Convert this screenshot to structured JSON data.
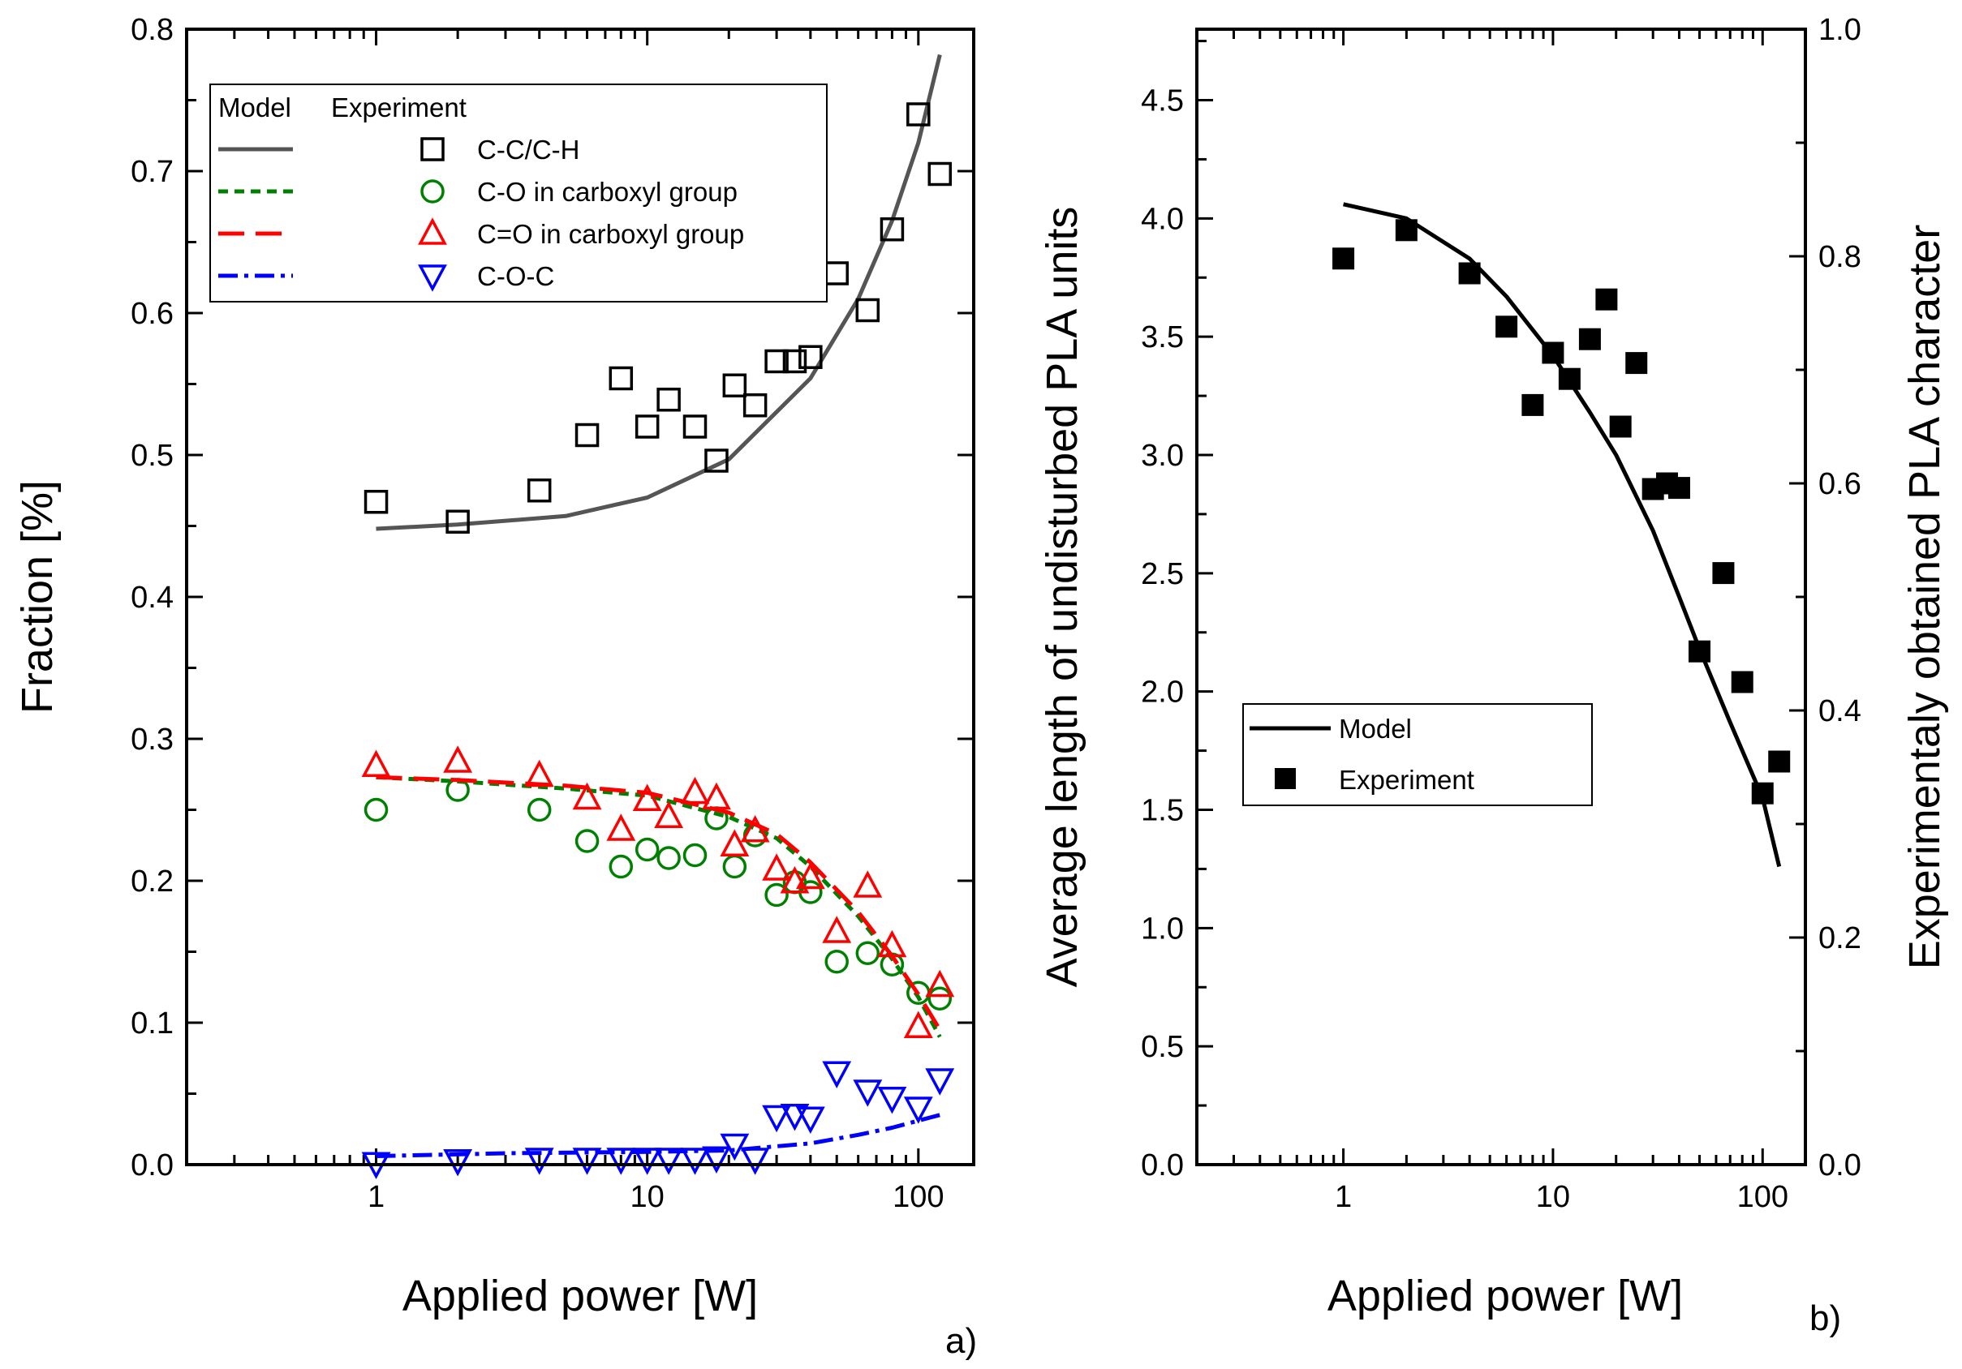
{
  "chart_data": [
    {
      "panel_label": "a)",
      "type": "scatter",
      "x_scale": "log",
      "xlabel": "Applied power [W]",
      "ylabel": "Fraction [%]",
      "xlim": [
        0.2,
        160
      ],
      "ylim": [
        0.0,
        0.8
      ],
      "x_ticks": [
        "1",
        "10",
        "100"
      ],
      "y_ticks": [
        "0.0",
        "0.1",
        "0.2",
        "0.3",
        "0.4",
        "0.5",
        "0.6",
        "0.7",
        "0.8"
      ],
      "legend": {
        "position": "top-left",
        "header_model": "Model",
        "header_experiment": "Experiment"
      },
      "series": [
        {
          "name": "C-C/C-H",
          "color": "#000000",
          "line_color": "#555555",
          "marker": "square-open",
          "line_style": "solid",
          "points": [
            [
              1,
              0.467
            ],
            [
              2,
              0.453
            ],
            [
              4,
              0.475
            ],
            [
              6,
              0.514
            ],
            [
              8,
              0.554
            ],
            [
              10,
              0.52
            ],
            [
              12,
              0.539
            ],
            [
              15,
              0.52
            ],
            [
              18,
              0.496
            ],
            [
              21,
              0.549
            ],
            [
              25,
              0.535
            ],
            [
              30,
              0.566
            ],
            [
              35,
              0.566
            ],
            [
              40,
              0.569
            ],
            [
              50,
              0.628
            ],
            [
              65,
              0.602
            ],
            [
              80,
              0.659
            ],
            [
              100,
              0.74
            ],
            [
              120,
              0.698
            ]
          ],
          "model": [
            [
              1,
              0.448
            ],
            [
              2,
              0.451
            ],
            [
              5,
              0.457
            ],
            [
              10,
              0.47
            ],
            [
              20,
              0.497
            ],
            [
              40,
              0.554
            ],
            [
              60,
              0.61
            ],
            [
              80,
              0.665
            ],
            [
              100,
              0.72
            ],
            [
              120,
              0.782
            ]
          ]
        },
        {
          "name": "C-O in carboxyl group",
          "color": "#008000",
          "line_color": "#008000",
          "marker": "circle-open",
          "line_style": "short-dash",
          "points": [
            [
              1,
              0.25
            ],
            [
              2,
              0.264
            ],
            [
              4,
              0.25
            ],
            [
              6,
              0.228
            ],
            [
              8,
              0.21
            ],
            [
              10,
              0.222
            ],
            [
              12,
              0.216
            ],
            [
              15,
              0.218
            ],
            [
              18,
              0.244
            ],
            [
              21,
              0.21
            ],
            [
              25,
              0.232
            ],
            [
              30,
              0.19
            ],
            [
              35,
              0.199
            ],
            [
              40,
              0.192
            ],
            [
              50,
              0.143
            ],
            [
              65,
              0.149
            ],
            [
              80,
              0.141
            ],
            [
              100,
              0.121
            ],
            [
              120,
              0.117
            ]
          ],
          "model": [
            [
              1,
              0.273
            ],
            [
              2,
              0.27
            ],
            [
              5,
              0.265
            ],
            [
              10,
              0.26
            ],
            [
              20,
              0.245
            ],
            [
              30,
              0.23
            ],
            [
              40,
              0.21
            ],
            [
              60,
              0.175
            ],
            [
              80,
              0.145
            ],
            [
              100,
              0.118
            ],
            [
              120,
              0.09
            ]
          ]
        },
        {
          "name": "C=O in carboxyl group",
          "color": "#ff0000",
          "line_color": "#ff0000",
          "marker": "triangle-up-open",
          "line_style": "long-dash",
          "points": [
            [
              1,
              0.281
            ],
            [
              2,
              0.284
            ],
            [
              4,
              0.274
            ],
            [
              6,
              0.258
            ],
            [
              8,
              0.236
            ],
            [
              10,
              0.257
            ],
            [
              12,
              0.245
            ],
            [
              15,
              0.262
            ],
            [
              18,
              0.258
            ],
            [
              21,
              0.225
            ],
            [
              25,
              0.235
            ],
            [
              30,
              0.208
            ],
            [
              35,
              0.199
            ],
            [
              40,
              0.202
            ],
            [
              50,
              0.164
            ],
            [
              65,
              0.196
            ],
            [
              80,
              0.154
            ],
            [
              100,
              0.097
            ],
            [
              120,
              0.126
            ]
          ],
          "model": [
            [
              1,
              0.273
            ],
            [
              2,
              0.271
            ],
            [
              5,
              0.267
            ],
            [
              10,
              0.262
            ],
            [
              20,
              0.248
            ],
            [
              30,
              0.233
            ],
            [
              40,
              0.213
            ],
            [
              60,
              0.178
            ],
            [
              80,
              0.147
            ],
            [
              100,
              0.12
            ],
            [
              120,
              0.095
            ]
          ]
        },
        {
          "name": "C-O-C",
          "color": "#0000ff",
          "line_color": "#0000ff",
          "marker": "triangle-down-open",
          "line_style": "dash-dot",
          "points": [
            [
              1,
              0.001
            ],
            [
              2,
              0.003
            ],
            [
              4,
              0.004
            ],
            [
              6,
              0.004
            ],
            [
              8,
              0.004
            ],
            [
              10,
              0.004
            ],
            [
              12,
              0.004
            ],
            [
              15,
              0.004
            ],
            [
              18,
              0.005
            ],
            [
              21,
              0.014
            ],
            [
              25,
              0.004
            ],
            [
              30,
              0.034
            ],
            [
              35,
              0.035
            ],
            [
              40,
              0.033
            ],
            [
              50,
              0.065
            ],
            [
              65,
              0.052
            ],
            [
              80,
              0.047
            ],
            [
              100,
              0.04
            ],
            [
              120,
              0.06
            ]
          ],
          "model": [
            [
              1,
              0.006
            ],
            [
              3,
              0.008
            ],
            [
              10,
              0.009
            ],
            [
              20,
              0.01
            ],
            [
              40,
              0.015
            ],
            [
              60,
              0.021
            ],
            [
              80,
              0.026
            ],
            [
              100,
              0.031
            ],
            [
              120,
              0.035
            ]
          ]
        }
      ]
    },
    {
      "panel_label": "b)",
      "type": "scatter",
      "x_scale": "log",
      "xlabel": "Applied power [W]",
      "ylabel": "Average length of undisturbed PLA units",
      "y2label": "Experimentaly obtained PLA character",
      "xlim": [
        0.2,
        160
      ],
      "ylim": [
        0.0,
        4.8
      ],
      "y2lim": [
        0.0,
        1.0
      ],
      "x_ticks": [
        "1",
        "10",
        "100"
      ],
      "y_ticks": [
        "0.0",
        "0.5",
        "1.0",
        "1.5",
        "2.0",
        "2.5",
        "3.0",
        "3.5",
        "4.0",
        "4.5"
      ],
      "y2_ticks": [
        "0.0",
        "0.2",
        "0.4",
        "0.6",
        "0.8",
        "1.0"
      ],
      "legend": {
        "position": "center-left"
      },
      "series": [
        {
          "name": "Model",
          "color": "#000000",
          "line_style": "solid",
          "axis": "left",
          "model": [
            [
              1,
              4.06
            ],
            [
              2,
              4.0
            ],
            [
              4,
              3.83
            ],
            [
              6,
              3.67
            ],
            [
              10,
              3.42
            ],
            [
              15,
              3.18
            ],
            [
              20,
              3.0
            ],
            [
              30,
              2.68
            ],
            [
              40,
              2.4
            ],
            [
              50,
              2.18
            ],
            [
              70,
              1.87
            ],
            [
              100,
              1.55
            ],
            [
              120,
              1.26
            ]
          ]
        },
        {
          "name": "Experiment",
          "color": "#000000",
          "marker": "square-filled",
          "axis": "right",
          "points": [
            [
              1,
              0.798
            ],
            [
              2,
              0.823
            ],
            [
              4,
              0.785
            ],
            [
              6,
              0.738
            ],
            [
              8,
              0.669
            ],
            [
              10,
              0.715
            ],
            [
              12,
              0.692
            ],
            [
              15,
              0.727
            ],
            [
              18,
              0.762
            ],
            [
              21,
              0.65
            ],
            [
              25,
              0.706
            ],
            [
              30,
              0.595
            ],
            [
              35,
              0.6
            ],
            [
              40,
              0.596
            ],
            [
              50,
              0.452
            ],
            [
              65,
              0.521
            ],
            [
              80,
              0.425
            ],
            [
              100,
              0.327
            ],
            [
              120,
              0.355
            ]
          ]
        }
      ]
    }
  ]
}
